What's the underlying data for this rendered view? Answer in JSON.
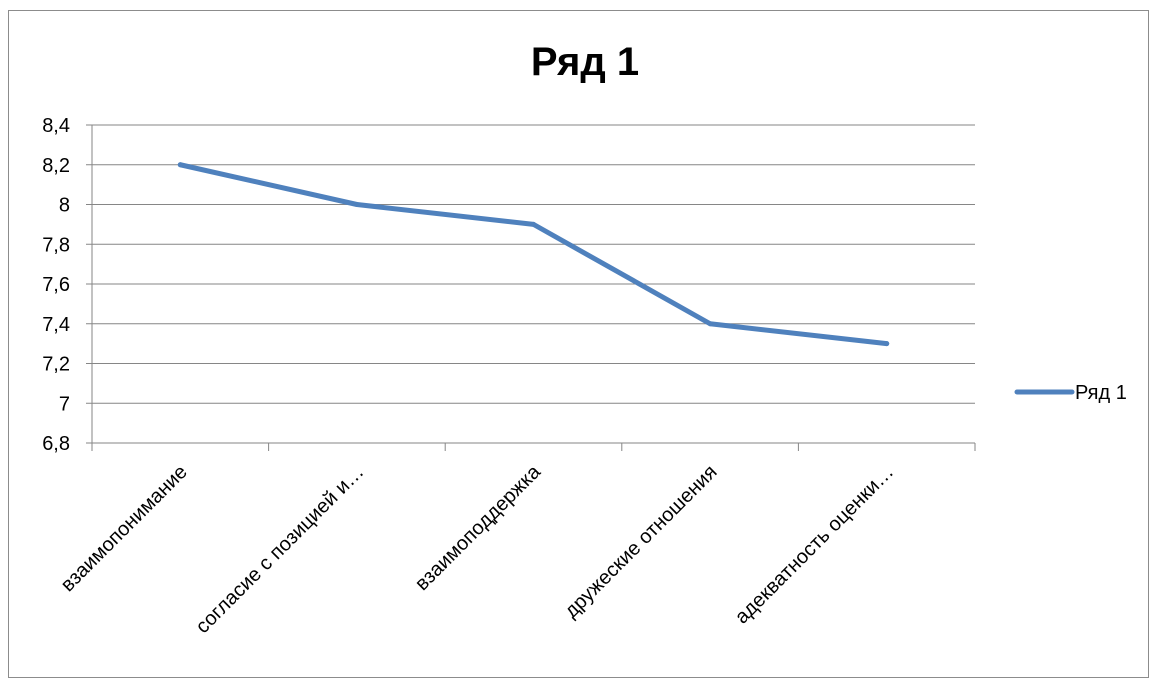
{
  "chart_data": {
    "type": "line",
    "title": "Ряд 1",
    "categories": [
      "взаимопонимание",
      "согласие с позицией и…",
      "взаимоподдержка",
      "дружеские отношения",
      "адекватность оценки…"
    ],
    "series": [
      {
        "name": "Ряд 1",
        "values": [
          8.2,
          8.0,
          7.9,
          7.4,
          7.3
        ],
        "color": "#4f81bd"
      }
    ],
    "y_ticks": [
      "6,8",
      "7",
      "7,2",
      "7,4",
      "7,6",
      "7,8",
      "8",
      "8,2",
      "8,4"
    ],
    "ylim": [
      6.8,
      8.4
    ],
    "grid": true,
    "legend_position": "right",
    "xlabel": "",
    "ylabel": ""
  }
}
